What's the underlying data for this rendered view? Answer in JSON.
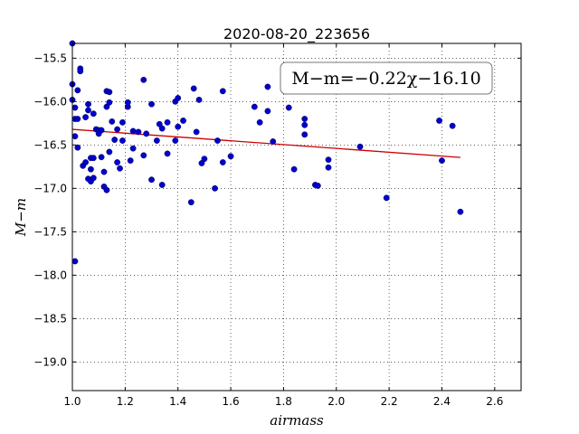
{
  "chart_data": {
    "type": "scatter",
    "title": "2020-08-20_223656",
    "xlabel": "airmass",
    "ylabel": "M−m",
    "xlim": [
      1.0,
      2.7
    ],
    "ylim": [
      -19.33,
      -15.33
    ],
    "xticks": [
      1.0,
      1.2,
      1.4,
      1.6,
      1.8,
      2.0,
      2.2,
      2.4,
      2.6
    ],
    "xtick_labels": [
      "1.0",
      "1.2",
      "1.4",
      "1.6",
      "1.8",
      "2.0",
      "2.2",
      "2.4",
      "2.6"
    ],
    "yticks": [
      -15.5,
      -16.0,
      -16.5,
      -17.0,
      -17.5,
      -18.0,
      -18.5,
      -19.0
    ],
    "ytick_labels": [
      "−15.5",
      "−16.0",
      "−16.5",
      "−17.0",
      "−17.5",
      "−18.0",
      "−18.5",
      "−19.0"
    ],
    "grid": true,
    "annotation": "M−m=−0.22χ−16.10",
    "fit": {
      "slope": -0.22,
      "intercept": -16.1,
      "x_range": [
        1.0,
        2.47
      ],
      "color": "#cc0000"
    },
    "point_color": "#0000cc",
    "points": [
      [
        1.0,
        -15.33
      ],
      [
        1.0,
        -15.8
      ],
      [
        1.0,
        -15.98
      ],
      [
        1.01,
        -16.07
      ],
      [
        1.01,
        -16.2
      ],
      [
        1.01,
        -16.4
      ],
      [
        1.01,
        -17.84
      ],
      [
        1.02,
        -16.2
      ],
      [
        1.02,
        -16.53
      ],
      [
        1.02,
        -15.87
      ],
      [
        1.03,
        -15.62
      ],
      [
        1.03,
        -15.65
      ],
      [
        1.04,
        -16.74
      ],
      [
        1.05,
        -16.18
      ],
      [
        1.05,
        -16.7
      ],
      [
        1.06,
        -16.1
      ],
      [
        1.06,
        -16.03
      ],
      [
        1.06,
        -16.89
      ],
      [
        1.07,
        -16.78
      ],
      [
        1.07,
        -16.65
      ],
      [
        1.07,
        -16.92
      ],
      [
        1.08,
        -16.65
      ],
      [
        1.08,
        -16.88
      ],
      [
        1.08,
        -16.14
      ],
      [
        1.09,
        -16.32
      ],
      [
        1.1,
        -16.33
      ],
      [
        1.1,
        -16.37
      ],
      [
        1.11,
        -16.33
      ],
      [
        1.11,
        -16.64
      ],
      [
        1.12,
        -16.81
      ],
      [
        1.12,
        -16.98
      ],
      [
        1.13,
        -17.02
      ],
      [
        1.13,
        -16.06
      ],
      [
        1.13,
        -15.88
      ],
      [
        1.14,
        -15.89
      ],
      [
        1.14,
        -16.01
      ],
      [
        1.14,
        -16.58
      ],
      [
        1.15,
        -16.23
      ],
      [
        1.16,
        -16.44
      ],
      [
        1.17,
        -16.7
      ],
      [
        1.18,
        -16.77
      ],
      [
        1.17,
        -16.32
      ],
      [
        1.19,
        -16.45
      ],
      [
        1.19,
        -16.24
      ],
      [
        1.21,
        -16.06
      ],
      [
        1.21,
        -16.01
      ],
      [
        1.22,
        -16.68
      ],
      [
        1.23,
        -16.54
      ],
      [
        1.23,
        -16.34
      ],
      [
        1.25,
        -16.35
      ],
      [
        1.27,
        -15.75
      ],
      [
        1.27,
        -16.62
      ],
      [
        1.28,
        -16.37
      ],
      [
        1.3,
        -16.03
      ],
      [
        1.3,
        -16.9
      ],
      [
        1.32,
        -16.45
      ],
      [
        1.33,
        -16.26
      ],
      [
        1.34,
        -16.31
      ],
      [
        1.34,
        -16.96
      ],
      [
        1.36,
        -16.6
      ],
      [
        1.36,
        -16.24
      ],
      [
        1.39,
        -16.45
      ],
      [
        1.39,
        -16.0
      ],
      [
        1.4,
        -15.96
      ],
      [
        1.4,
        -16.29
      ],
      [
        1.42,
        -16.22
      ],
      [
        1.45,
        -17.16
      ],
      [
        1.46,
        -15.85
      ],
      [
        1.47,
        -16.35
      ],
      [
        1.48,
        -15.98
      ],
      [
        1.49,
        -16.71
      ],
      [
        1.5,
        -16.66
      ],
      [
        1.54,
        -17.0
      ],
      [
        1.55,
        -16.45
      ],
      [
        1.57,
        -16.7
      ],
      [
        1.57,
        -15.88
      ],
      [
        1.6,
        -16.63
      ],
      [
        1.69,
        -16.06
      ],
      [
        1.71,
        -16.24
      ],
      [
        1.74,
        -15.83
      ],
      [
        1.74,
        -16.11
      ],
      [
        1.76,
        -16.46
      ],
      [
        1.82,
        -16.07
      ],
      [
        1.84,
        -16.78
      ],
      [
        1.88,
        -16.38
      ],
      [
        1.88,
        -16.2
      ],
      [
        1.88,
        -16.27
      ],
      [
        1.92,
        -16.96
      ],
      [
        1.93,
        -16.97
      ],
      [
        1.97,
        -16.67
      ],
      [
        1.97,
        -16.76
      ],
      [
        2.09,
        -16.52
      ],
      [
        2.19,
        -17.11
      ],
      [
        2.39,
        -16.22
      ],
      [
        2.4,
        -16.68
      ],
      [
        2.44,
        -16.28
      ],
      [
        2.47,
        -17.27
      ]
    ]
  }
}
